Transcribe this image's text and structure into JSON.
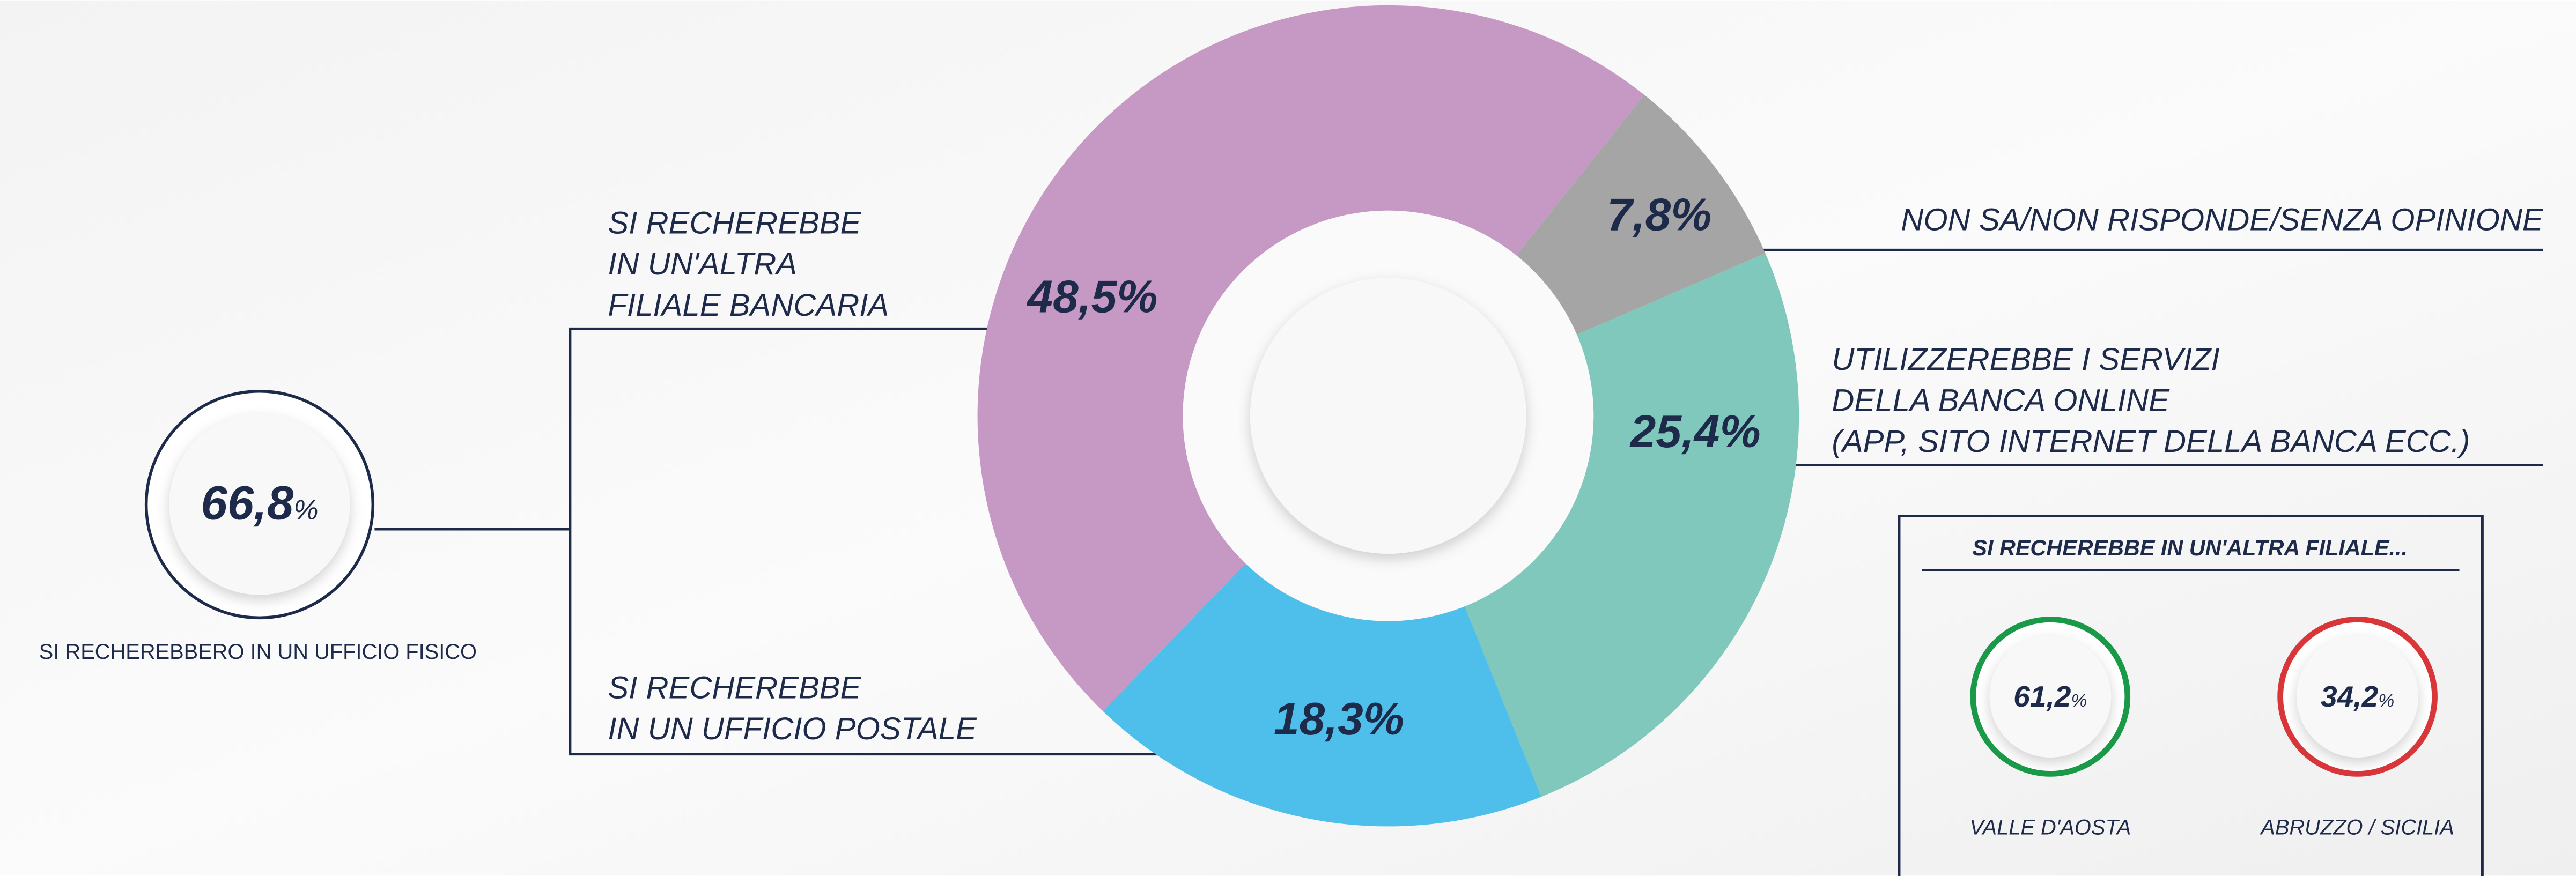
{
  "chart_data": {
    "type": "pie",
    "categories": [
      [
        "SI RECHEREBBE",
        "IN UN'ALTRA",
        "FILIALE BANCARIA"
      ],
      [
        "NON SA/NON RISPONDE/SENZA OPINIONE"
      ],
      [
        "UTILIZZEREBBE I SERVIZI",
        "DELLA BANCA ONLINE",
        "(APP, SITO INTERNET DELLA BANCA ECC.)"
      ],
      [
        "SI RECHEREBBE",
        "IN UN UFFICIO POSTALE"
      ]
    ],
    "values": [
      48.5,
      7.8,
      25.4,
      18.3
    ],
    "value_labels": [
      "48,5%",
      "7,8%",
      "25,4%",
      "18,3%"
    ],
    "colors": [
      "#c699c5",
      "#a5a5a5",
      "#80c8bb",
      "#4dbfea"
    ]
  },
  "summary": {
    "value": "66,8",
    "unit": "%",
    "label": "SI RECHEREBBERO IN UN UFFICIO FISICO"
  },
  "regional": {
    "title": "SI RECHEREBBE IN UN'ALTRA FILIALE...",
    "items": [
      {
        "value": "61,2",
        "unit": "%",
        "label": "VALLE D'AOSTA",
        "color": "#1a9a48"
      },
      {
        "value": "34,2",
        "unit": "%",
        "label": "ABRUZZO / SICILIA",
        "color": "#d9363a"
      }
    ]
  }
}
